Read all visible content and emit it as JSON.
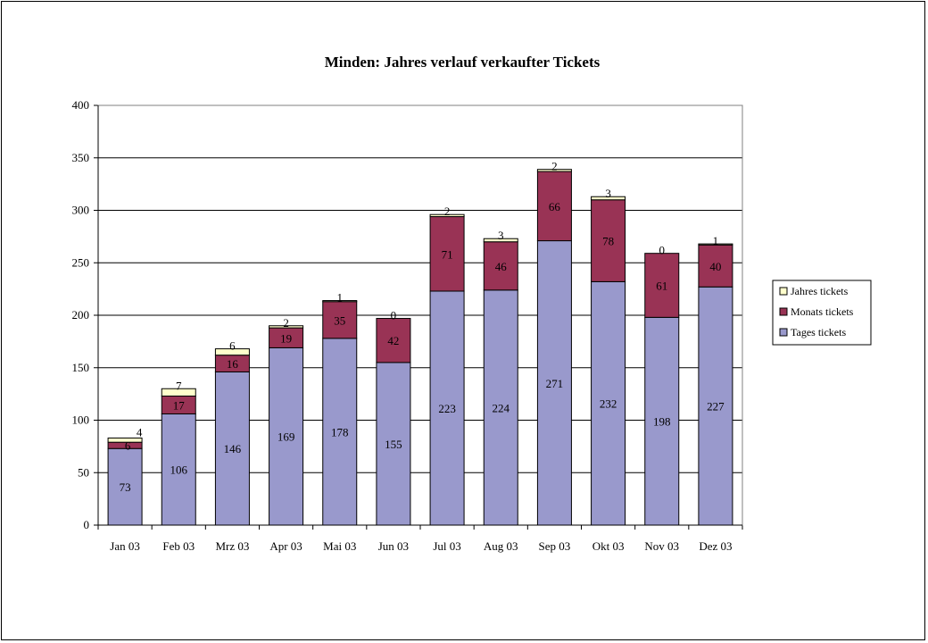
{
  "chart_data": {
    "type": "bar",
    "stacked": true,
    "title": "Minden: Jahres verlauf verkaufter Tickets",
    "xlabel": "",
    "ylabel": "",
    "ylim": [
      0,
      400
    ],
    "yticks": [
      "0",
      "50",
      "100",
      "150",
      "200",
      "250",
      "300",
      "350",
      "400"
    ],
    "grid": true,
    "legend_position": "right",
    "categories": [
      "Jan 03",
      "Feb 03",
      "Mrz 03",
      "Apr 03",
      "Mai 03",
      "Jun 03",
      "Jul 03",
      "Aug 03",
      "Sep 03",
      "Okt 03",
      "Nov 03",
      "Dez 03"
    ],
    "series": [
      {
        "name": "Tages tickets",
        "color": "#9999cc",
        "values": [
          73,
          106,
          146,
          169,
          178,
          155,
          223,
          224,
          271,
          232,
          198,
          227
        ]
      },
      {
        "name": "Monats tickets",
        "color": "#993355",
        "values": [
          6,
          17,
          16,
          19,
          35,
          42,
          71,
          46,
          66,
          78,
          61,
          40
        ]
      },
      {
        "name": "Jahres tickets",
        "color": "#ffffcc",
        "values": [
          4,
          7,
          6,
          2,
          1,
          0,
          2,
          3,
          2,
          3,
          0,
          1
        ]
      }
    ],
    "legend_order": [
      "Jahres tickets",
      "Monats tickets",
      "Tages tickets"
    ]
  }
}
